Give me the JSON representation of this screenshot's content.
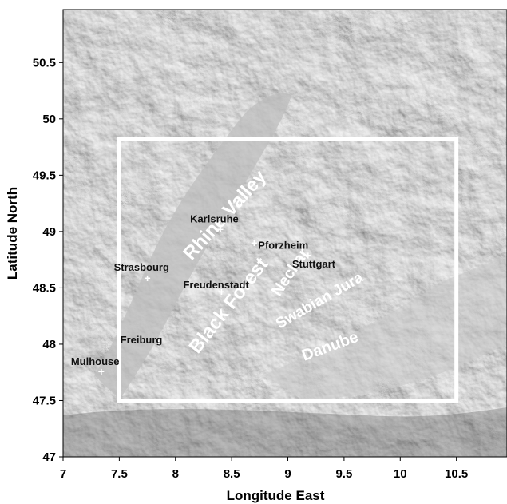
{
  "map": {
    "xlabel": "Longitude East",
    "ylabel": "Latitude North",
    "x_range": [
      7,
      10.95
    ],
    "y_range": [
      47,
      50.97
    ],
    "x_ticks": [
      7,
      7.5,
      8,
      8.5,
      9,
      9.5,
      10,
      10.5
    ],
    "y_ticks": [
      47,
      47.5,
      48,
      48.5,
      49,
      49.5,
      50,
      50.5
    ],
    "study_area": {
      "lon": [
        7.5,
        10.5
      ],
      "lat": [
        47.5,
        49.82
      ]
    },
    "cities": [
      {
        "name": "Karlsruhe",
        "lon": 8.4,
        "lat": 49.01,
        "label": "Karlsruhe"
      },
      {
        "name": "Pforzheim",
        "lon": 8.7,
        "lat": 48.89,
        "label": "Pforzheim"
      },
      {
        "name": "Stuttgart",
        "lon": 9.18,
        "lat": 48.78,
        "label": "Stuttgart"
      },
      {
        "name": "Strasbourg",
        "lon": 7.75,
        "lat": 48.58,
        "label": "Strasbourg"
      },
      {
        "name": "Freudenstadt",
        "lon": 8.41,
        "lat": 48.46,
        "label": "Freudenstadt"
      },
      {
        "name": "Freiburg",
        "lon": 7.85,
        "lat": 48.0,
        "label": "Freiburg"
      },
      {
        "name": "Mulhouse",
        "lon": 7.34,
        "lat": 47.75,
        "label": "Mulhouse"
      }
    ],
    "regions": [
      {
        "name": "Rhine Valley",
        "label": "Rhine Valley"
      },
      {
        "name": "Black Forest",
        "label": "Black Forest"
      },
      {
        "name": "Neckar",
        "label": "Neckar"
      },
      {
        "name": "Swabian Jura",
        "label": "Swabian Jura"
      },
      {
        "name": "Danube",
        "label": "Danube"
      }
    ],
    "colors": {
      "relief_base": "#c4c4c4",
      "relief_dark": "#2a2a2a",
      "box": "#ffffff",
      "region_text": "#ffffff",
      "city_text": "#111111"
    }
  }
}
